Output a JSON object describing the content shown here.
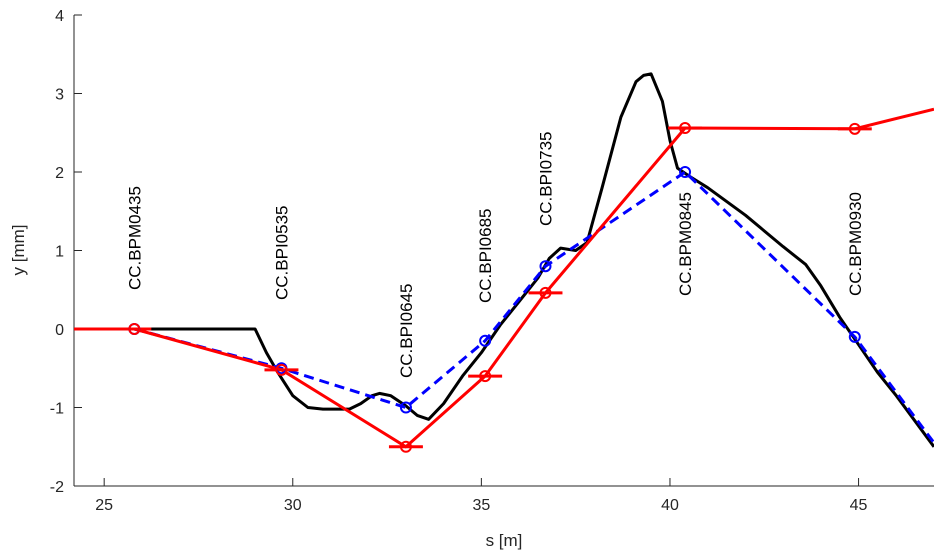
{
  "chart_data": {
    "type": "line",
    "xlabel": "s [m]",
    "ylabel": "y [mm]",
    "xlim": [
      24.2,
      47
    ],
    "ylim": [
      -2,
      4
    ],
    "xticks": [
      "25",
      "30",
      "35",
      "40",
      "45"
    ],
    "yticks": [
      "-2",
      "-1",
      "0",
      "1",
      "2",
      "3",
      "4"
    ],
    "grid": false,
    "bpm_labels": [
      {
        "s": 25.8,
        "text": "CC.BPM0435"
      },
      {
        "s": 29.7,
        "text": "CC.BPI0535"
      },
      {
        "s": 33.0,
        "text": "CC.BPI0645"
      },
      {
        "s": 35.1,
        "text": "CC.BPI0685"
      },
      {
        "s": 36.7,
        "text": "CC.BPI0735"
      },
      {
        "s": 40.4,
        "text": "CC.BPM0845"
      },
      {
        "s": 44.9,
        "text": "CC.BPM0930"
      }
    ],
    "series": [
      {
        "style": "solid",
        "color": "#000000",
        "x": [
          24.2,
          26.5,
          29.0,
          29.3,
          29.6,
          30.0,
          30.4,
          30.8,
          31.5,
          31.8,
          32.1,
          32.3,
          32.6,
          33.0,
          33.3,
          33.6,
          34.0,
          34.5,
          35.0,
          35.5,
          36.0,
          36.5,
          36.8,
          37.1,
          37.5,
          37.8,
          38.2,
          38.7,
          39.1,
          39.3,
          39.5,
          39.8,
          40.0,
          40.2,
          40.5,
          41.0,
          42.0,
          43.0,
          43.6,
          44.0,
          44.5,
          45.0,
          45.5,
          46.0,
          47.0
        ],
        "y": [
          0,
          0,
          0,
          -0.3,
          -0.55,
          -0.85,
          -1.0,
          -1.02,
          -1.02,
          -0.95,
          -0.85,
          -0.82,
          -0.85,
          -0.98,
          -1.1,
          -1.15,
          -0.95,
          -0.6,
          -0.3,
          0.05,
          0.35,
          0.65,
          0.9,
          1.03,
          1.0,
          1.1,
          1.8,
          2.7,
          3.15,
          3.23,
          3.25,
          2.9,
          2.4,
          2.05,
          1.95,
          1.8,
          1.45,
          1.05,
          0.82,
          0.55,
          0.15,
          -0.2,
          -0.55,
          -0.85,
          -1.5
        ]
      },
      {
        "style": "dashed",
        "color": "#0000ff",
        "marker": "o",
        "x": [
          25.8,
          29.7,
          33.0,
          35.1,
          36.7,
          40.4,
          44.9,
          47.0
        ],
        "y": [
          0.0,
          -0.5,
          -1.0,
          -0.15,
          0.8,
          2.0,
          -0.1,
          -1.45
        ]
      },
      {
        "style": "solid",
        "color": "#ff0000",
        "marker": "o",
        "x": [
          24.2,
          25.8,
          29.7,
          33.0,
          35.1,
          36.7,
          40.4,
          44.9,
          47.0
        ],
        "y": [
          0.0,
          0.0,
          -0.52,
          -1.5,
          -0.6,
          0.46,
          2.56,
          2.55,
          2.8
        ]
      }
    ],
    "error_bars": {
      "color": "#ff0000",
      "half_width_m": 0.45,
      "points": [
        {
          "s": 25.8,
          "y": 0.0
        },
        {
          "s": 29.7,
          "y": -0.52
        },
        {
          "s": 33.0,
          "y": -1.5
        },
        {
          "s": 35.1,
          "y": -0.6
        },
        {
          "s": 36.7,
          "y": 0.46
        },
        {
          "s": 40.4,
          "y": 2.56
        },
        {
          "s": 44.9,
          "y": 2.55
        }
      ]
    }
  }
}
